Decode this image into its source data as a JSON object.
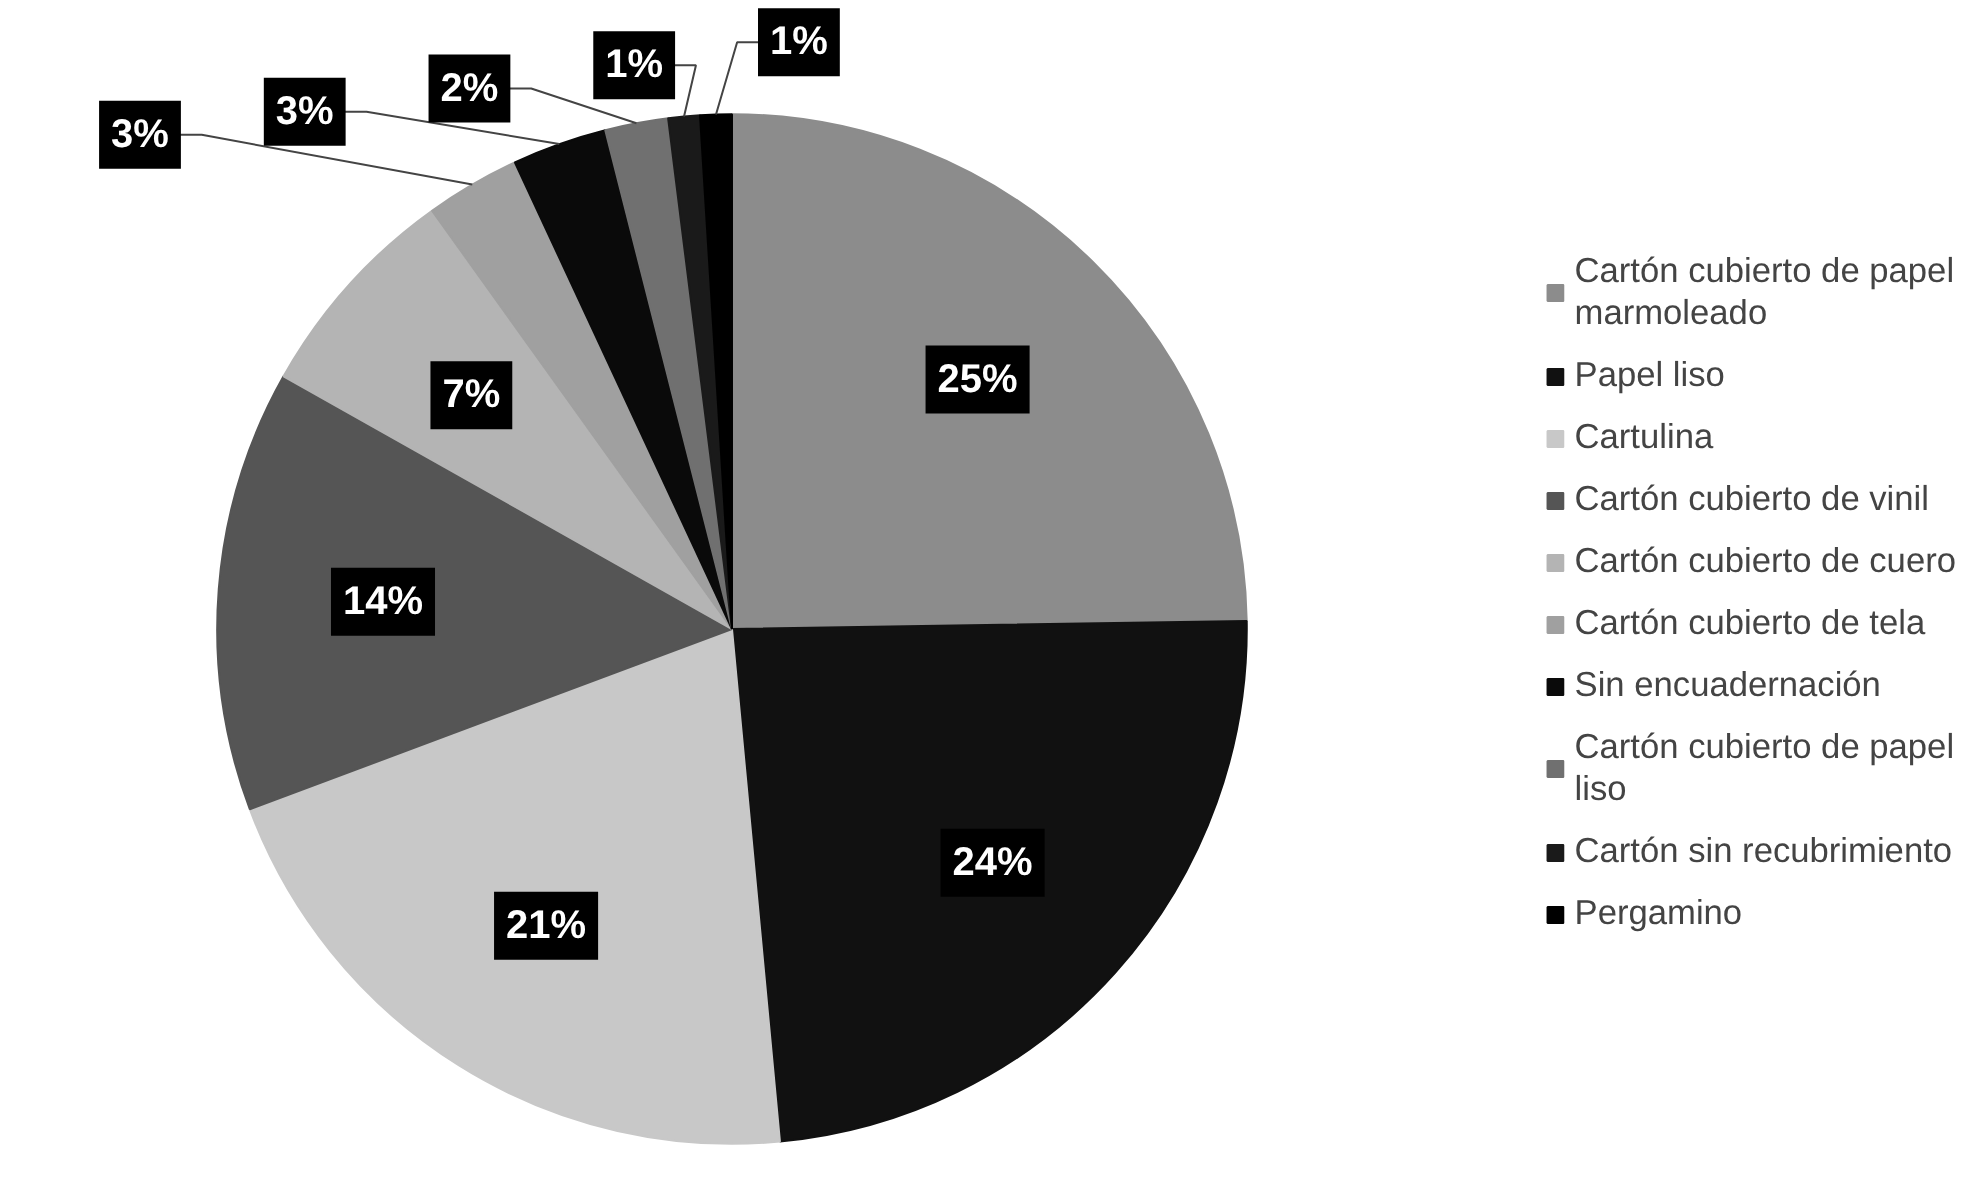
{
  "chart_data": {
    "type": "pie",
    "categories": [
      "Cartón cubierto de papel marmoleado",
      "Papel liso",
      "Cartulina",
      "Cartón cubierto de vinil",
      "Cartón cubierto de cuero",
      "Cartón cubierto de tela",
      "Sin encuadernación",
      "Cartón cubierto de papel liso",
      "Cartón sin recubrimiento",
      "Pergamino"
    ],
    "values": [
      25,
      24,
      21,
      14,
      7,
      3,
      3,
      2,
      1,
      1
    ],
    "value_labels": [
      "25%",
      "24%",
      "21%",
      "14%",
      "7%",
      "3%",
      "3%",
      "2%",
      "1%",
      "1%"
    ],
    "colors": [
      "#8c8c8c",
      "#111111",
      "#c8c8c8",
      "#555555",
      "#b4b4b4",
      "#a0a0a0",
      "#0a0a0a",
      "#707070",
      "#1a1a1a",
      "#000000"
    ],
    "legend": "right"
  }
}
